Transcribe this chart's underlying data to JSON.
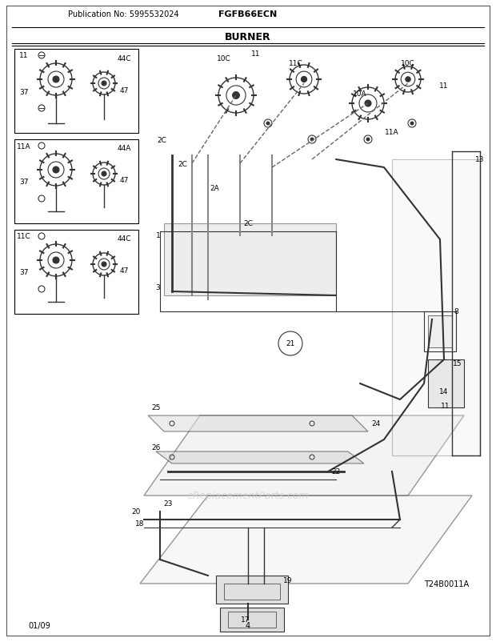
{
  "title": "BURNER",
  "pub_no": "Publication No: 5995532024",
  "model": "FGFB66ECN",
  "date": "01/09",
  "page": "4",
  "diagram_id": "T24B0011A",
  "website": "eReplacementParts.com",
  "bg_color": "#ffffff",
  "border_color": "#000000",
  "text_color": "#000000",
  "diagram_color": "#333333",
  "light_gray": "#aaaaaa",
  "fig_width": 6.2,
  "fig_height": 8.03,
  "dpi": 100
}
